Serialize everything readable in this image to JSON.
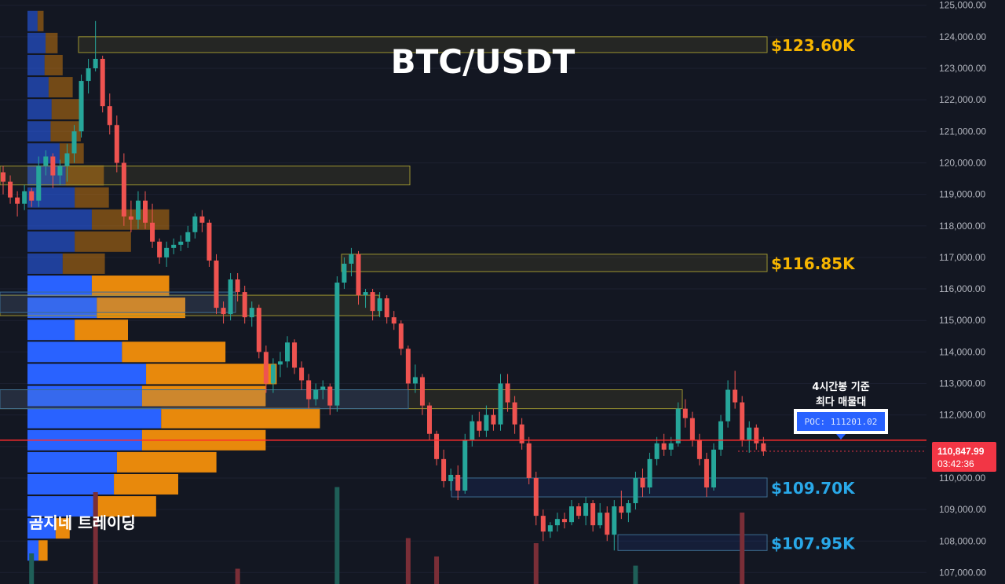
{
  "chart_data": {
    "type": "candlestick",
    "title": "BTC/USDT",
    "y_axis": {
      "range": [
        106800,
        125200
      ],
      "ticks": [
        107000,
        108000,
        109000,
        110000,
        111000,
        112000,
        113000,
        114000,
        115000,
        116000,
        117000,
        118000,
        119000,
        120000,
        121000,
        122000,
        123000,
        124000,
        125000
      ],
      "tick_labels": [
        "107,000.00",
        "108,000.00",
        "109,000.00",
        "110,000.00",
        "111,000.00",
        "112,000.00",
        "113,000.00",
        "114,000.00",
        "115,000.00",
        "116,000.00",
        "117,000.00",
        "118,000.00",
        "119,000.00",
        "120,000.00",
        "121,000.00",
        "122,000.00",
        "123,000.00",
        "124,000.00",
        "125,000.00"
      ],
      "position": "right"
    },
    "colors": {
      "up": "#26a69a",
      "down": "#ef5350",
      "volume_profile_buy": "#2962ff",
      "volume_profile_sell": "#e8890c",
      "level_high": "#f7b500",
      "level_low": "#29a8e8",
      "poc_line": "#ff2b2b",
      "zone_border_yellow": "#9c9430",
      "zone_border_blue": "#3d6d91"
    },
    "candles": [
      [
        119700,
        119900,
        119000,
        119400
      ],
      [
        119400,
        119600,
        118700,
        118900
      ],
      [
        118900,
        119100,
        118300,
        118700
      ],
      [
        118700,
        119300,
        118500,
        119100
      ],
      [
        119100,
        119200,
        118600,
        118800
      ],
      [
        118800,
        120200,
        118600,
        119900
      ],
      [
        119900,
        120400,
        119600,
        120200
      ],
      [
        120200,
        120300,
        119200,
        119600
      ],
      [
        119600,
        120100,
        119300,
        119900
      ],
      [
        119900,
        120600,
        119400,
        120300
      ],
      [
        120300,
        121200,
        120000,
        121000
      ],
      [
        121000,
        122800,
        120800,
        122600
      ],
      [
        122600,
        123300,
        122200,
        123000
      ],
      [
        123000,
        124500,
        122900,
        123300
      ],
      [
        123300,
        123400,
        121600,
        121800
      ],
      [
        121800,
        122200,
        120900,
        121200
      ],
      [
        121200,
        121500,
        119700,
        120000
      ],
      [
        120000,
        120300,
        118000,
        118300
      ],
      [
        118300,
        118800,
        117800,
        118200
      ],
      [
        118200,
        119100,
        117900,
        118800
      ],
      [
        118800,
        119100,
        117900,
        118100
      ],
      [
        118100,
        118700,
        117300,
        117500
      ],
      [
        117500,
        117600,
        116800,
        117000
      ],
      [
        117000,
        117500,
        116700,
        117300
      ],
      [
        117300,
        117600,
        117100,
        117400
      ],
      [
        117400,
        117700,
        117200,
        117500
      ],
      [
        117500,
        118000,
        117300,
        117800
      ],
      [
        117800,
        118400,
        117600,
        118300
      ],
      [
        118300,
        118500,
        117800,
        118100
      ],
      [
        118100,
        118200,
        116700,
        116900
      ],
      [
        116900,
        117100,
        115200,
        115400
      ],
      [
        115400,
        115600,
        114900,
        115200
      ],
      [
        115200,
        116500,
        115000,
        116300
      ],
      [
        116300,
        116500,
        115600,
        115900
      ],
      [
        115900,
        116100,
        114900,
        115100
      ],
      [
        115100,
        115600,
        114800,
        115400
      ],
      [
        115400,
        115500,
        113800,
        114000
      ],
      [
        114000,
        114200,
        112700,
        113000
      ],
      [
        113000,
        113800,
        112700,
        113600
      ],
      [
        113600,
        114000,
        113200,
        113700
      ],
      [
        113700,
        114500,
        113500,
        114300
      ],
      [
        114300,
        114400,
        113300,
        113500
      ],
      [
        113500,
        113700,
        112800,
        113100
      ],
      [
        113100,
        113300,
        112200,
        112500
      ],
      [
        112500,
        113000,
        112300,
        112800
      ],
      [
        112800,
        113100,
        112500,
        112900
      ],
      [
        112900,
        113000,
        112000,
        112300
      ],
      [
        112300,
        116400,
        112100,
        116200
      ],
      [
        116200,
        117000,
        116000,
        116800
      ],
      [
        116800,
        117300,
        116400,
        117100
      ],
      [
        117100,
        117200,
        115500,
        115800
      ],
      [
        115800,
        116000,
        115400,
        115900
      ],
      [
        115900,
        116000,
        115000,
        115300
      ],
      [
        115300,
        115900,
        115100,
        115700
      ],
      [
        115700,
        115800,
        114900,
        115100
      ],
      [
        115100,
        115300,
        114700,
        114900
      ],
      [
        114900,
        115000,
        113900,
        114100
      ],
      [
        114100,
        114200,
        112800,
        113000
      ],
      [
        113000,
        113600,
        112700,
        113200
      ],
      [
        113200,
        113300,
        112000,
        112300
      ],
      [
        112300,
        112400,
        111200,
        111400
      ],
      [
        111400,
        111500,
        110400,
        110600
      ],
      [
        110600,
        110900,
        109700,
        109900
      ],
      [
        109900,
        110300,
        109600,
        110100
      ],
      [
        110100,
        110400,
        109300,
        109600
      ],
      [
        109600,
        111400,
        109500,
        111200
      ],
      [
        111200,
        112000,
        111000,
        111800
      ],
      [
        111800,
        112100,
        111300,
        111500
      ],
      [
        111500,
        112300,
        111300,
        112000
      ],
      [
        112000,
        112200,
        111500,
        111700
      ],
      [
        111700,
        113300,
        111500,
        113000
      ],
      [
        113000,
        113300,
        112100,
        112400
      ],
      [
        112400,
        112600,
        111400,
        111700
      ],
      [
        111700,
        111900,
        110900,
        111100
      ],
      [
        111100,
        111300,
        109800,
        110000
      ],
      [
        110000,
        110200,
        108500,
        108800
      ],
      [
        108800,
        109000,
        108000,
        108300
      ],
      [
        108300,
        108600,
        108100,
        108500
      ],
      [
        108500,
        108900,
        108300,
        108700
      ],
      [
        108700,
        108900,
        108400,
        108600
      ],
      [
        108600,
        109300,
        108500,
        109100
      ],
      [
        109100,
        109200,
        108700,
        108800
      ],
      [
        108800,
        109400,
        108500,
        109200
      ],
      [
        109200,
        109300,
        108300,
        108500
      ],
      [
        108500,
        109200,
        108400,
        108900
      ],
      [
        108900,
        109100,
        108000,
        108200
      ],
      [
        108200,
        109300,
        107700,
        109100
      ],
      [
        109100,
        109600,
        108700,
        108900
      ],
      [
        108900,
        109300,
        108600,
        109200
      ],
      [
        109200,
        110200,
        109000,
        110000
      ],
      [
        110000,
        110300,
        109400,
        109700
      ],
      [
        109700,
        110800,
        109500,
        110600
      ],
      [
        110600,
        111300,
        110400,
        111100
      ],
      [
        111100,
        111400,
        110700,
        110900
      ],
      [
        110900,
        111300,
        110700,
        111100
      ],
      [
        111100,
        112400,
        111000,
        112200
      ],
      [
        112200,
        112500,
        111600,
        111900
      ],
      [
        111900,
        112100,
        111000,
        111200
      ],
      [
        111200,
        111400,
        110400,
        110600
      ],
      [
        110600,
        110800,
        109400,
        109700
      ],
      [
        109700,
        111100,
        109600,
        110900
      ],
      [
        110900,
        112000,
        110700,
        111800
      ],
      [
        111800,
        113100,
        111600,
        112800
      ],
      [
        112800,
        113400,
        112200,
        112400
      ],
      [
        112400,
        112600,
        111000,
        111200
      ],
      [
        111200,
        111800,
        110800,
        111600
      ],
      [
        111600,
        111700,
        110900,
        111100
      ],
      [
        111100,
        111300,
        110700,
        110848
      ]
    ],
    "volume_profile": {
      "bins": [
        {
          "price": 124500,
          "buy": 1,
          "sell": 0.6
        },
        {
          "price": 123800,
          "buy": 1.8,
          "sell": 1.2
        },
        {
          "price": 123100,
          "buy": 1.7,
          "sell": 1.8
        },
        {
          "price": 122400,
          "buy": 2.1,
          "sell": 2.4
        },
        {
          "price": 121700,
          "buy": 2.4,
          "sell": 2.8
        },
        {
          "price": 121000,
          "buy": 2.3,
          "sell": 3.0
        },
        {
          "price": 120300,
          "buy": 3.2,
          "sell": 2.4
        },
        {
          "price": 119600,
          "buy": 3.8,
          "sell": 3.8
        },
        {
          "price": 118900,
          "buy": 4.7,
          "sell": 3.4
        },
        {
          "price": 118200,
          "buy": 6.4,
          "sell": 7.7
        },
        {
          "price": 117500,
          "buy": 4.7,
          "sell": 5.6
        },
        {
          "price": 116800,
          "buy": 3.5,
          "sell": 4.2
        },
        {
          "price": 116100,
          "buy": 6.4,
          "sell": 7.7
        },
        {
          "price": 115400,
          "buy": 6.9,
          "sell": 8.8
        },
        {
          "price": 114700,
          "buy": 4.7,
          "sell": 5.3
        },
        {
          "price": 114000,
          "buy": 9.4,
          "sell": 10.3
        },
        {
          "price": 113300,
          "buy": 11.8,
          "sell": 13.0
        },
        {
          "price": 112600,
          "buy": 11.4,
          "sell": 12.3
        },
        {
          "price": 111900,
          "buy": 13.3,
          "sell": 15.8
        },
        {
          "price": 111200,
          "buy": 11.4,
          "sell": 12.3
        },
        {
          "price": 110500,
          "buy": 8.9,
          "sell": 9.9
        },
        {
          "price": 109800,
          "buy": 8.6,
          "sell": 6.4
        },
        {
          "price": 109100,
          "buy": 7.0,
          "sell": 5.8
        },
        {
          "price": 108400,
          "buy": 2.8,
          "sell": 1.4
        },
        {
          "price": 107700,
          "buy": 1.1,
          "sell": 0.9
        }
      ]
    },
    "zones": [
      {
        "label": "$123.60K",
        "top": 124000,
        "bottom": 123500,
        "kind": "high"
      },
      {
        "label": "",
        "top": 119900,
        "bottom": 119300,
        "kind": "mid"
      },
      {
        "label": "$116.85K",
        "top": 117100,
        "bottom": 116550,
        "kind": "high"
      },
      {
        "label": "",
        "top": 115800,
        "bottom": 115150,
        "kind": "mid"
      },
      {
        "label": "",
        "top": 112800,
        "bottom": 112200,
        "kind": "mid"
      },
      {
        "label": "$109.70K",
        "top": 110000,
        "bottom": 109400,
        "kind": "low"
      },
      {
        "label": "$107.95K",
        "top": 108200,
        "bottom": 107700,
        "kind": "low"
      }
    ],
    "poc": {
      "price": 111201.02,
      "label": "POC: 111201.02"
    },
    "annotation": [
      "4시간봉 기준",
      "최다 매물대"
    ],
    "current_price": {
      "value": "110,847.99",
      "countdown": "03:42:36"
    },
    "watermark": "곰지네 트레이딩",
    "volume_bars": [
      {
        "index": 4,
        "value": 0.3,
        "dir": "up"
      },
      {
        "index": 13,
        "value": 0.9,
        "dir": "down"
      },
      {
        "index": 33,
        "value": 0.15,
        "dir": "down"
      },
      {
        "index": 47,
        "value": 0.95,
        "dir": "up"
      },
      {
        "index": 57,
        "value": 0.45,
        "dir": "down"
      },
      {
        "index": 61,
        "value": 0.27,
        "dir": "down"
      },
      {
        "index": 75,
        "value": 0.4,
        "dir": "down"
      },
      {
        "index": 89,
        "value": 0.18,
        "dir": "up"
      },
      {
        "index": 104,
        "value": 0.7,
        "dir": "down"
      }
    ]
  }
}
